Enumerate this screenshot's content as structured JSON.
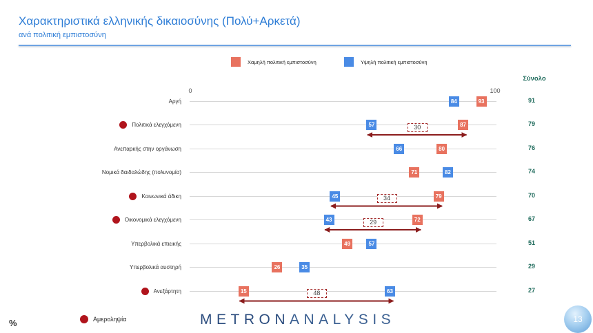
{
  "slide": {
    "page_number": "13",
    "logo": {
      "primary": "METRON",
      "secondary": "ANALYSIS"
    },
    "colors": {
      "title": "#2E7DD6",
      "total": "#1F6B5C",
      "marker": "#B0141C",
      "arrow": "#8B1C1C",
      "rule": "#6EA4E2",
      "gap_border": "#A42A2A"
    }
  },
  "chart_data": {
    "type": "scatter",
    "title": "Χαρακτηριστικά ελληνικής δικαιοσύνης (Πολύ+Αρκετά)",
    "subtitle": "ανά πολιτική εμπιστοσύνη",
    "unit": "%",
    "xlim": [
      0,
      100
    ],
    "x_ticks": [
      0,
      100
    ],
    "categories": [
      "Αργή",
      "Πολιτικά ελεγχόμενη",
      "Ανεπαρκής στην οργάνωση",
      "Νομικά δαιδαλώδης (πολυνομία)",
      "Κοινωνικά άδικη",
      "Οικονομικά ελεγχόμενη",
      "Υπερβολικά επιεικής",
      "Υπερβολικά αυστηρή",
      "Ανεξάρτητη"
    ],
    "series": [
      {
        "name": "Χαμηλή πολιτική εμπιστοσύνη",
        "color": "#E8725F",
        "values": [
          93,
          87,
          80,
          71,
          79,
          72,
          49,
          26,
          15
        ]
      },
      {
        "name": "Υψηλή πολιτική εμπιστοσύνη",
        "color": "#4A8BE5",
        "values": [
          84,
          57,
          66,
          82,
          45,
          43,
          57,
          35,
          63
        ]
      }
    ],
    "total": {
      "label": "Σύνολο",
      "values": [
        91,
        79,
        76,
        74,
        70,
        67,
        51,
        29,
        27
      ]
    },
    "impartiality": {
      "label": "Αμεροληψία",
      "marked": [
        false,
        true,
        false,
        false,
        true,
        true,
        false,
        false,
        true
      ]
    },
    "gaps": [
      null,
      30,
      null,
      null,
      34,
      29,
      null,
      null,
      48
    ]
  }
}
